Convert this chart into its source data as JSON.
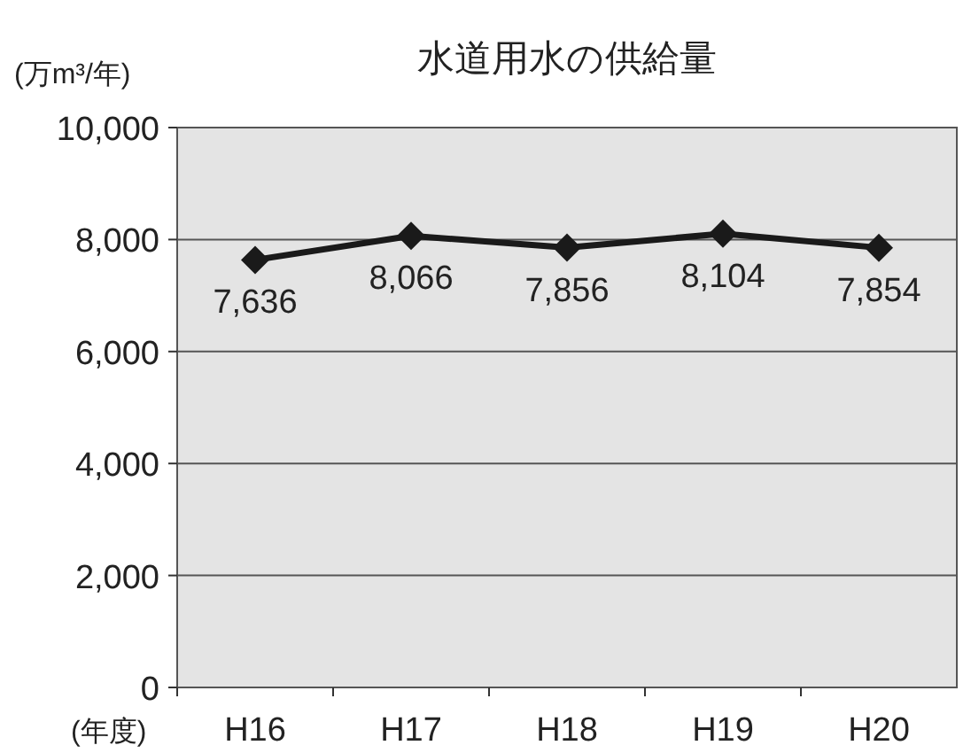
{
  "chart_data": {
    "type": "line",
    "title": "水道用水の供給量",
    "ylabel": "(万m³/年)",
    "xlabel": "(年度)",
    "categories": [
      "H16",
      "H17",
      "H18",
      "H19",
      "H20"
    ],
    "values": [
      7636,
      8066,
      7856,
      8104,
      7854
    ],
    "value_labels": [
      "7,636",
      "8,066",
      "7,856",
      "8,104",
      "7,854"
    ],
    "color": "#1a1a1a",
    "marker": "diamond",
    "line_style": "solid",
    "grid": "y",
    "ylim": [
      0,
      10000
    ],
    "yticks": [
      {
        "value": 0,
        "label": "0"
      },
      {
        "value": 2000,
        "label": "2,000"
      },
      {
        "value": 4000,
        "label": "4,000"
      },
      {
        "value": 6000,
        "label": "6,000"
      },
      {
        "value": 8000,
        "label": "8,000"
      },
      {
        "value": 10000,
        "label": "10,000"
      }
    ]
  }
}
